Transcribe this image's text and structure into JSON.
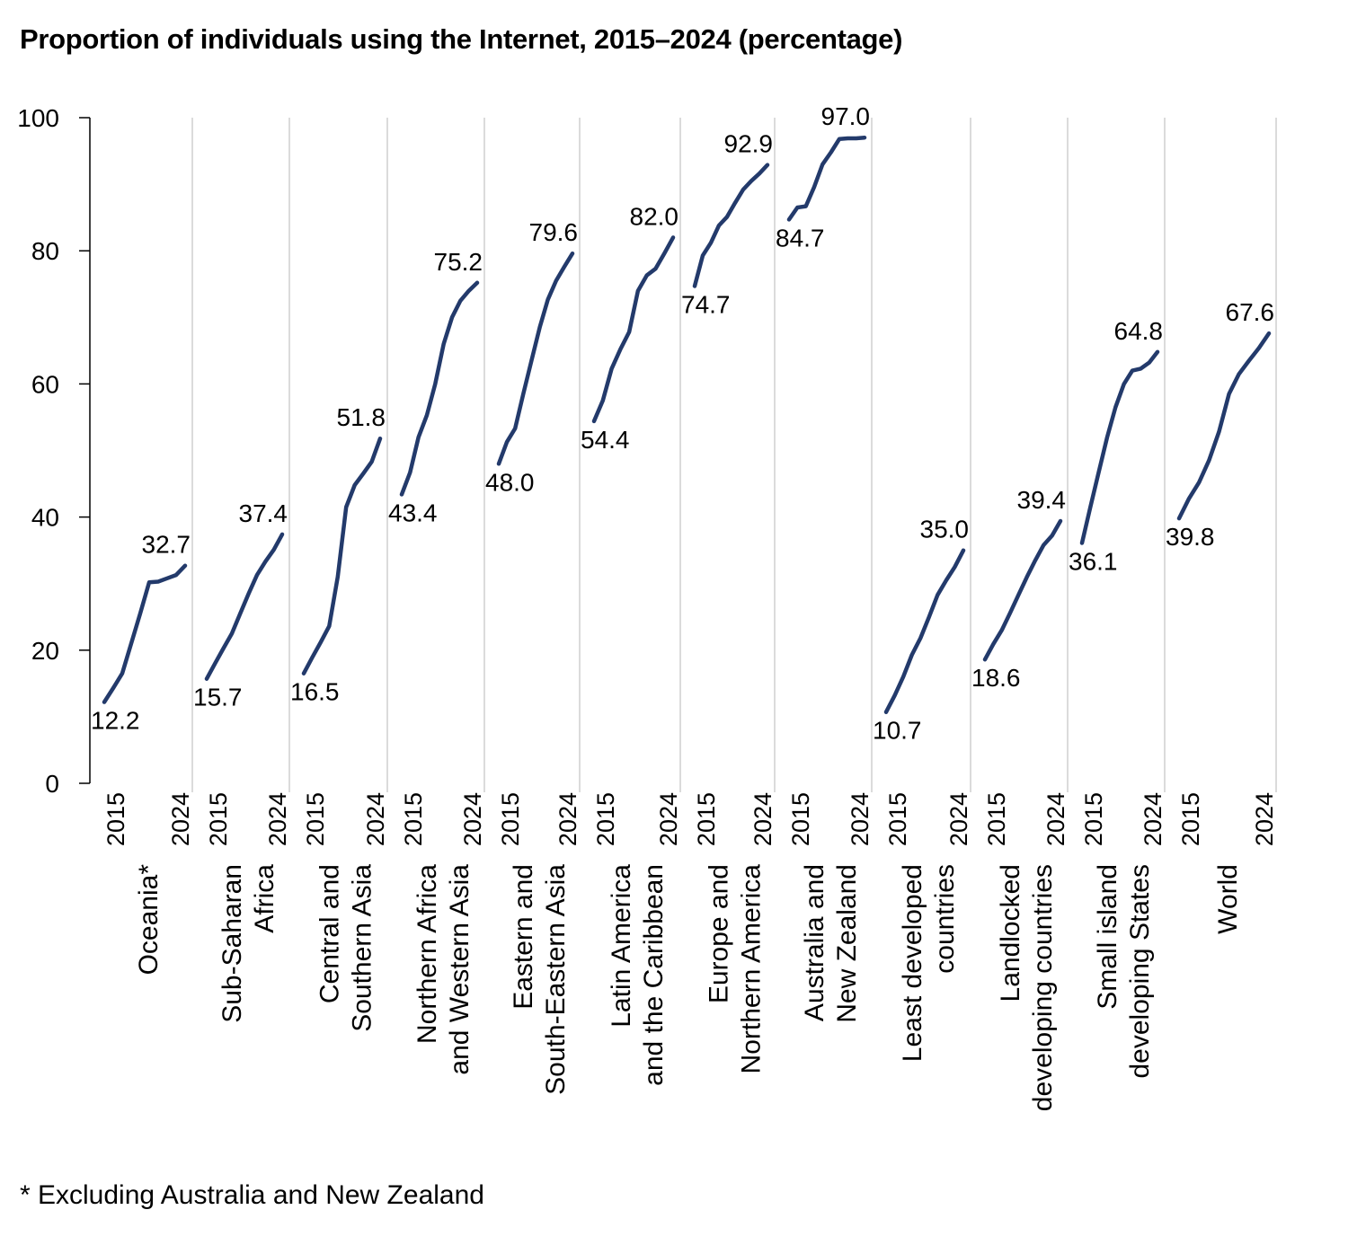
{
  "chart_data": {
    "type": "line",
    "title": "Proportion of individuals using the Internet, 2015–2024 (percentage)",
    "footnote": "* Excluding Australia and New Zealand",
    "ylim": [
      0,
      100
    ],
    "yticks": [
      0,
      20,
      40,
      60,
      80,
      100
    ],
    "x": [
      2015,
      2016,
      2017,
      2018,
      2019,
      2020,
      2021,
      2022,
      2023,
      2024
    ],
    "x_tick_labels": [
      "2015",
      "2024"
    ],
    "grid": "vertical separators between panels",
    "line_color": "#233a6b",
    "series": [
      {
        "name": [
          "Oceania*"
        ],
        "values": [
          12.2,
          14.3,
          16.5,
          21,
          25.5,
          30.2,
          30.3,
          30.8,
          31.3,
          32.7
        ],
        "start_label": "12.2",
        "end_label": "32.7"
      },
      {
        "name": [
          "Sub-Saharan",
          "Africa"
        ],
        "values": [
          15.7,
          18,
          20.3,
          22.5,
          25.5,
          28.5,
          31.3,
          33.3,
          35.1,
          37.4
        ],
        "start_label": "15.7",
        "end_label": "37.4"
      },
      {
        "name": [
          "Central and",
          "Southern Asia"
        ],
        "values": [
          16.5,
          18.9,
          21.2,
          23.6,
          31,
          41.5,
          44.8,
          46.5,
          48.3,
          51.8
        ],
        "start_label": "16.5",
        "end_label": "51.8"
      },
      {
        "name": [
          "Northern Africa",
          "and Western Asia"
        ],
        "values": [
          43.4,
          46.7,
          52,
          55.3,
          60,
          66,
          70,
          72.5,
          74,
          75.2
        ],
        "start_label": "43.4",
        "end_label": "75.2"
      },
      {
        "name": [
          "Eastern and",
          "South-Eastern Asia"
        ],
        "values": [
          48.0,
          51.3,
          53.3,
          58.5,
          63.5,
          68.5,
          72.7,
          75.5,
          77.6,
          79.6
        ],
        "start_label": "48.0",
        "end_label": "79.6"
      },
      {
        "name": [
          "Latin America",
          "and the Caribbean"
        ],
        "values": [
          54.4,
          57.5,
          62.3,
          65.2,
          67.8,
          74,
          76.3,
          77.3,
          79.6,
          82.0
        ],
        "start_label": "54.4",
        "end_label": "82.0"
      },
      {
        "name": [
          "Europe and",
          "Northern America"
        ],
        "values": [
          74.7,
          79.3,
          81.2,
          83.8,
          85.1,
          87.2,
          89.2,
          90.5,
          91.6,
          92.9
        ],
        "start_label": "74.7",
        "end_label": "92.9"
      },
      {
        "name": [
          "Australia and",
          "New Zealand"
        ],
        "values": [
          84.7,
          86.5,
          86.7,
          89.6,
          93,
          94.8,
          96.8,
          96.9,
          96.9,
          97.0
        ],
        "start_label": "84.7",
        "end_label": "97.0"
      },
      {
        "name": [
          "Least developed",
          "countries"
        ],
        "values": [
          10.7,
          13.2,
          16,
          19.3,
          21.8,
          25,
          28.3,
          30.5,
          32.5,
          35.0
        ],
        "start_label": "10.7",
        "end_label": "35.0"
      },
      {
        "name": [
          "Landlocked",
          "developing countries"
        ],
        "values": [
          18.6,
          20.9,
          23,
          25.6,
          28.3,
          31,
          33.5,
          35.8,
          37.2,
          39.4
        ],
        "start_label": "18.6",
        "end_label": "39.4"
      },
      {
        "name": [
          "Small island",
          "developing States"
        ],
        "values": [
          36.1,
          41.5,
          46.8,
          52,
          56.5,
          60,
          62,
          62.3,
          63.2,
          64.8
        ],
        "start_label": "36.1",
        "end_label": "64.8"
      },
      {
        "name": [
          "World"
        ],
        "values": [
          39.8,
          42.8,
          45.2,
          48.5,
          52.8,
          58.5,
          61.5,
          63.5,
          65.4,
          67.6
        ],
        "start_label": "39.8",
        "end_label": "67.6"
      }
    ]
  }
}
